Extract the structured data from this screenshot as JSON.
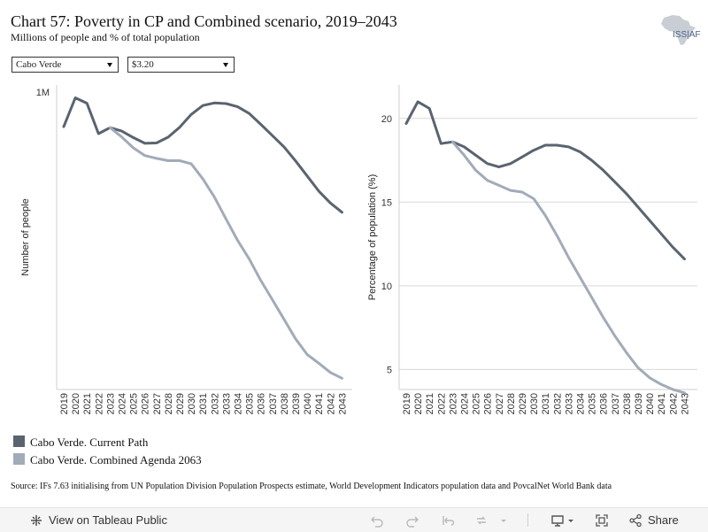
{
  "header": {
    "title": "Chart 57: Poverty in CP and Combined scenario, 2019–2043",
    "subtitle": "Millions of people and % of total population",
    "logo_text": "ISS|AFI"
  },
  "filters": {
    "country": "Cabo Verde",
    "threshold": "$3.20"
  },
  "chart_data": [
    {
      "type": "line",
      "ylabel": "Number of people",
      "y_tick_labels": [
        "1M"
      ],
      "grid": false,
      "x": [
        "2019",
        "2020",
        "2021",
        "2022",
        "2023",
        "2024",
        "2025",
        "2026",
        "2027",
        "2028",
        "2029",
        "2030",
        "2031",
        "2032",
        "2033",
        "2034",
        "2035",
        "2036",
        "2037",
        "2038",
        "2039",
        "2040",
        "2041",
        "2042",
        "2043"
      ],
      "series": [
        {
          "name": "Cabo Verde. Current Path",
          "color": "#5a6470",
          "values": [
            0.9,
            0.99,
            0.973,
            0.878,
            0.897,
            0.886,
            0.866,
            0.848,
            0.849,
            0.867,
            0.898,
            0.938,
            0.966,
            0.974,
            0.972,
            0.962,
            0.941,
            0.907,
            0.872,
            0.837,
            0.793,
            0.746,
            0.699,
            0.662,
            0.633
          ]
        },
        {
          "name": "Cabo Verde. Combined Agenda 2063",
          "color": "#a2abb8",
          "values": [
            null,
            null,
            null,
            null,
            0.897,
            0.868,
            0.834,
            0.81,
            0.801,
            0.794,
            0.794,
            0.784,
            0.737,
            0.68,
            0.612,
            0.545,
            0.487,
            0.42,
            0.36,
            0.299,
            0.238,
            0.189,
            0.162,
            0.133,
            0.115
          ]
        }
      ]
    },
    {
      "type": "line",
      "ylabel": "Percentage of population (%)",
      "yticks": [
        5,
        10,
        15,
        20
      ],
      "ylim": [
        3.8,
        22
      ],
      "grid": true,
      "x": [
        "2019",
        "2020",
        "2021",
        "2022",
        "2023",
        "2024",
        "2025",
        "2026",
        "2027",
        "2028",
        "2029",
        "2030",
        "2031",
        "2032",
        "2033",
        "2034",
        "2035",
        "2036",
        "2037",
        "2038",
        "2039",
        "2040",
        "2041",
        "2042",
        "2043"
      ],
      "series": [
        {
          "name": "Cabo Verde. Current Path",
          "color": "#5a6470",
          "values": [
            19.7,
            21.0,
            20.6,
            18.5,
            18.6,
            18.3,
            17.8,
            17.3,
            17.1,
            17.3,
            17.7,
            18.1,
            18.4,
            18.4,
            18.3,
            18.0,
            17.5,
            16.9,
            16.2,
            15.5,
            14.7,
            13.9,
            13.1,
            12.3,
            11.6
          ]
        },
        {
          "name": "Cabo Verde. Combined Agenda 2063",
          "color": "#a2abb8",
          "values": [
            null,
            null,
            null,
            null,
            18.6,
            17.8,
            16.9,
            16.3,
            16.0,
            15.7,
            15.6,
            15.2,
            14.2,
            13.0,
            11.7,
            10.5,
            9.3,
            8.1,
            7.0,
            6.0,
            5.1,
            4.5,
            4.1,
            3.8,
            3.6
          ]
        }
      ]
    }
  ],
  "legend": [
    {
      "label": "Cabo Verde. Current Path",
      "color": "#5a6470"
    },
    {
      "label": "Cabo Verde. Combined Agenda 2063",
      "color": "#a2abb8"
    }
  ],
  "source": "Source: IFs 7.63 initialising from UN Population Division Population Prospects estimate, World Development Indicators population data and PovcalNet World Bank data",
  "toolbar": {
    "view_label": "View on Tableau Public",
    "share_label": "Share"
  }
}
